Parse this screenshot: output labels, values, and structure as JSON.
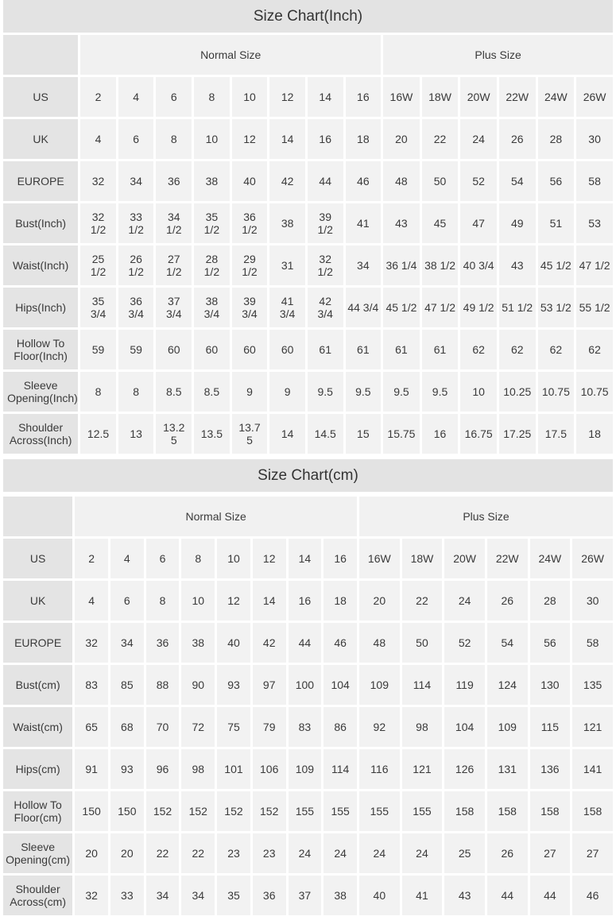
{
  "inch": {
    "title": "Size Chart(Inch)",
    "groups": [
      "Normal Size",
      "Plus Size"
    ],
    "rows": [
      {
        "label": "US",
        "values": [
          "2",
          "4",
          "6",
          "8",
          "10",
          "12",
          "14",
          "16",
          "16W",
          "18W",
          "20W",
          "22W",
          "24W",
          "26W"
        ]
      },
      {
        "label": "UK",
        "values": [
          "4",
          "6",
          "8",
          "10",
          "12",
          "14",
          "16",
          "18",
          "20",
          "22",
          "24",
          "26",
          "28",
          "30"
        ]
      },
      {
        "label": "EUROPE",
        "values": [
          "32",
          "34",
          "36",
          "38",
          "40",
          "42",
          "44",
          "46",
          "48",
          "50",
          "52",
          "54",
          "56",
          "58"
        ]
      },
      {
        "label": "Bust(Inch)",
        "values": [
          "32 1/2",
          "33 1/2",
          "34 1/2",
          "35 1/2",
          "36 1/2",
          "38",
          "39 1/2",
          "41",
          "43",
          "45",
          "47",
          "49",
          "51",
          "53"
        ]
      },
      {
        "label": "Waist(Inch)",
        "values": [
          "25 1/2",
          "26 1/2",
          "27 1/2",
          "28 1/2",
          "29 1/2",
          "31",
          "32 1/2",
          "34",
          "36 1/4",
          "38 1/2",
          "40 3/4",
          "43",
          "45 1/2",
          "47 1/2"
        ]
      },
      {
        "label": "Hips(Inch)",
        "values": [
          "35 3/4",
          "36 3/4",
          "37 3/4",
          "38 3/4",
          "39 3/4",
          "41 3/4",
          "42 3/4",
          "44 3/4",
          "45 1/2",
          "47 1/2",
          "49 1/2",
          "51 1/2",
          "53 1/2",
          "55 1/2"
        ]
      },
      {
        "label": "Hollow To Floor(Inch)",
        "values": [
          "59",
          "59",
          "60",
          "60",
          "60",
          "60",
          "61",
          "61",
          "61",
          "61",
          "62",
          "62",
          "62",
          "62"
        ]
      },
      {
        "label": "Sleeve Opening(Inch)",
        "values": [
          "8",
          "8",
          "8.5",
          "8.5",
          "9",
          "9",
          "9.5",
          "9.5",
          "9.5",
          "9.5",
          "10",
          "10.25",
          "10.75",
          "10.75"
        ]
      },
      {
        "label": "Shoulder Across(Inch)",
        "values": [
          "12.5",
          "13",
          "13.25",
          "13.5",
          "13.75",
          "14",
          "14.5",
          "15",
          "15.75",
          "16",
          "16.75",
          "17.25",
          "17.5",
          "18"
        ]
      }
    ]
  },
  "cm": {
    "title": "Size Chart(cm)",
    "groups": [
      "Normal Size",
      "Plus Size"
    ],
    "rows": [
      {
        "label": "US",
        "values": [
          "2",
          "4",
          "6",
          "8",
          "10",
          "12",
          "14",
          "16",
          "16W",
          "18W",
          "20W",
          "22W",
          "24W",
          "26W"
        ]
      },
      {
        "label": "UK",
        "values": [
          "4",
          "6",
          "8",
          "10",
          "12",
          "14",
          "16",
          "18",
          "20",
          "22",
          "24",
          "26",
          "28",
          "30"
        ]
      },
      {
        "label": "EUROPE",
        "values": [
          "32",
          "34",
          "36",
          "38",
          "40",
          "42",
          "44",
          "46",
          "48",
          "50",
          "52",
          "54",
          "56",
          "58"
        ]
      },
      {
        "label": "Bust(cm)",
        "values": [
          "83",
          "85",
          "88",
          "90",
          "93",
          "97",
          "100",
          "104",
          "109",
          "114",
          "119",
          "124",
          "130",
          "135"
        ]
      },
      {
        "label": "Waist(cm)",
        "values": [
          "65",
          "68",
          "70",
          "72",
          "75",
          "79",
          "83",
          "86",
          "92",
          "98",
          "104",
          "109",
          "115",
          "121"
        ]
      },
      {
        "label": "Hips(cm)",
        "values": [
          "91",
          "93",
          "96",
          "98",
          "101",
          "106",
          "109",
          "114",
          "116",
          "121",
          "126",
          "131",
          "136",
          "141"
        ]
      },
      {
        "label": "Hollow To Floor(cm)",
        "values": [
          "150",
          "150",
          "152",
          "152",
          "152",
          "152",
          "155",
          "155",
          "155",
          "155",
          "158",
          "158",
          "158",
          "158"
        ]
      },
      {
        "label": "Sleeve Opening(cm)",
        "values": [
          "20",
          "20",
          "22",
          "22",
          "23",
          "23",
          "24",
          "24",
          "24",
          "24",
          "25",
          "26",
          "27",
          "27"
        ]
      },
      {
        "label": "Shoulder Across(cm)",
        "values": [
          "32",
          "33",
          "34",
          "34",
          "35",
          "36",
          "37",
          "38",
          "40",
          "41",
          "43",
          "44",
          "44",
          "46"
        ]
      }
    ]
  },
  "colors": {
    "title_bg": "#e3e3e3",
    "label_bg": "#e4e4e4",
    "cell_bg": "#f2f2f2",
    "text": "#3a3a3a"
  }
}
